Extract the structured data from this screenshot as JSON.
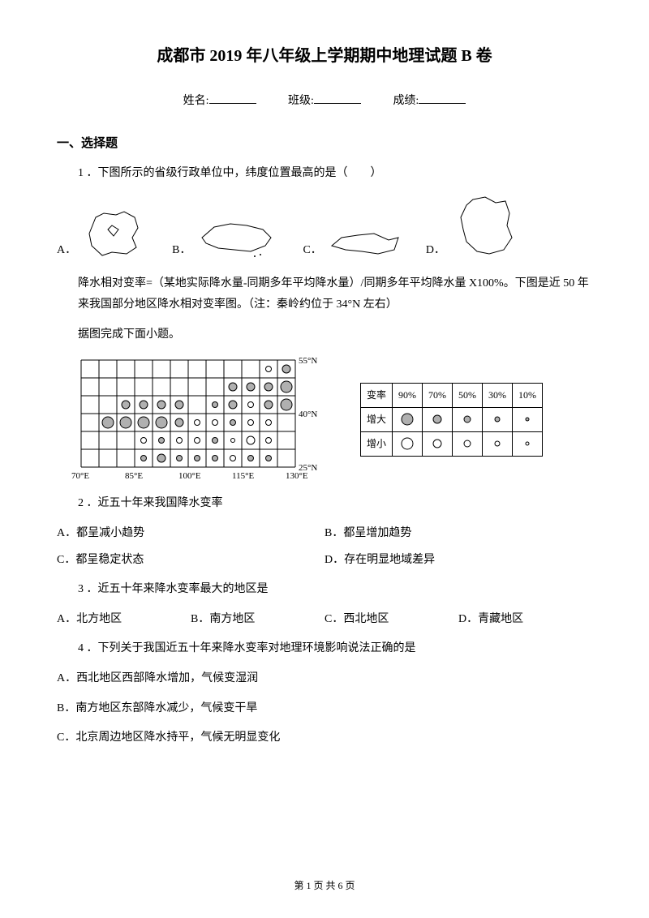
{
  "title": "成都市 2019 年八年级上学期期中地理试题 B 卷",
  "header": {
    "name_label": "姓名:",
    "class_label": "班级:",
    "score_label": "成绩:"
  },
  "section1": "一、选择题",
  "q1": {
    "text": "1 ．下图所示的省级行政单位中，纬度位置最高的是（　　）",
    "labels": {
      "a": "A．",
      "b": "B．",
      "c": "C．",
      "d": "D．"
    }
  },
  "intro2": "降水相对变率=（某地实际降水量-同期多年平均降水量）/同期多年平均降水量 X100%。下图是近 50 年来我国部分地区降水相对变率图。（注：秦岭约位于 34°N 左右）",
  "intro3": "据图完成下面小题。",
  "chart": {
    "xlabels": [
      "70°E",
      "85°E",
      "100°E",
      "115°E",
      "130°E"
    ],
    "ylabels": [
      "55°N",
      "40°N",
      "25°N"
    ],
    "grid_cols": 12,
    "grid_rows": 6,
    "cell_size": 22,
    "grid_color": "#000000",
    "bg_color": "#ffffff",
    "fill_color": "#b0b0b0",
    "points": [
      {
        "x": 10,
        "y": 0,
        "r": 3.5,
        "fill": false
      },
      {
        "x": 11,
        "y": 0,
        "r": 5,
        "fill": true
      },
      {
        "x": 8,
        "y": 1,
        "r": 5,
        "fill": true
      },
      {
        "x": 9,
        "y": 1,
        "r": 5,
        "fill": true
      },
      {
        "x": 10,
        "y": 1,
        "r": 5,
        "fill": true
      },
      {
        "x": 11,
        "y": 1,
        "r": 7,
        "fill": true
      },
      {
        "x": 2,
        "y": 2,
        "r": 5,
        "fill": true
      },
      {
        "x": 3,
        "y": 2,
        "r": 5,
        "fill": true
      },
      {
        "x": 4,
        "y": 2,
        "r": 5,
        "fill": true
      },
      {
        "x": 5,
        "y": 2,
        "r": 5,
        "fill": true
      },
      {
        "x": 7,
        "y": 2,
        "r": 3.5,
        "fill": true
      },
      {
        "x": 8,
        "y": 2,
        "r": 5,
        "fill": true
      },
      {
        "x": 9,
        "y": 2,
        "r": 3.5,
        "fill": false
      },
      {
        "x": 10,
        "y": 2,
        "r": 5,
        "fill": true
      },
      {
        "x": 11,
        "y": 2,
        "r": 7,
        "fill": true
      },
      {
        "x": 1,
        "y": 3,
        "r": 7,
        "fill": true
      },
      {
        "x": 2,
        "y": 3,
        "r": 7,
        "fill": true
      },
      {
        "x": 3,
        "y": 3,
        "r": 7,
        "fill": true
      },
      {
        "x": 4,
        "y": 3,
        "r": 7,
        "fill": true
      },
      {
        "x": 5,
        "y": 3,
        "r": 5,
        "fill": true
      },
      {
        "x": 6,
        "y": 3,
        "r": 3.5,
        "fill": false
      },
      {
        "x": 7,
        "y": 3,
        "r": 3.5,
        "fill": false
      },
      {
        "x": 8,
        "y": 3,
        "r": 3.5,
        "fill": true
      },
      {
        "x": 9,
        "y": 3,
        "r": 3.5,
        "fill": false
      },
      {
        "x": 10,
        "y": 3,
        "r": 3.5,
        "fill": false
      },
      {
        "x": 3,
        "y": 4,
        "r": 3.5,
        "fill": false
      },
      {
        "x": 4,
        "y": 4,
        "r": 3.5,
        "fill": true
      },
      {
        "x": 5,
        "y": 4,
        "r": 3.5,
        "fill": false
      },
      {
        "x": 6,
        "y": 4,
        "r": 3.5,
        "fill": false
      },
      {
        "x": 7,
        "y": 4,
        "r": 3.5,
        "fill": true
      },
      {
        "x": 8,
        "y": 4,
        "r": 2.5,
        "fill": false
      },
      {
        "x": 9,
        "y": 4,
        "r": 5,
        "fill": false
      },
      {
        "x": 10,
        "y": 4,
        "r": 3.5,
        "fill": false
      },
      {
        "x": 3,
        "y": 5,
        "r": 3.5,
        "fill": true
      },
      {
        "x": 4,
        "y": 5,
        "r": 5,
        "fill": true
      },
      {
        "x": 5,
        "y": 5,
        "r": 3.5,
        "fill": true
      },
      {
        "x": 6,
        "y": 5,
        "r": 3.5,
        "fill": true
      },
      {
        "x": 7,
        "y": 5,
        "r": 3.5,
        "fill": true
      },
      {
        "x": 8,
        "y": 5,
        "r": 3.5,
        "fill": false
      },
      {
        "x": 9,
        "y": 5,
        "r": 3.5,
        "fill": true
      },
      {
        "x": 10,
        "y": 5,
        "r": 3.5,
        "fill": true
      }
    ]
  },
  "legend": {
    "header": [
      "变率",
      "90%",
      "70%",
      "50%",
      "30%",
      "10%"
    ],
    "row_increase_label": "增大",
    "row_decrease_label": "增小",
    "radii": [
      7,
      5,
      4,
      3,
      2
    ]
  },
  "q2": {
    "text": "2 ．近五十年来我国降水变率",
    "a": "A．都呈减小趋势",
    "b": "B．都呈增加趋势",
    "c": "C．都呈稳定状态",
    "d": "D．存在明显地域差异"
  },
  "q3": {
    "text": "3 ．近五十年来降水变率最大的地区是",
    "a": "A．北方地区",
    "b": "B．南方地区",
    "c": "C．西北地区",
    "d": "D．青藏地区"
  },
  "q4": {
    "text": "4 ．下列关于我国近五十年来降水变率对地理环境影响说法正确的是",
    "a": "A．西北地区西部降水增加，气候变湿润",
    "b": "B．南方地区东部降水减少，气候变干旱",
    "c": "C．北京周边地区降水持平，气候无明显变化"
  },
  "footer": "第 1 页 共 6 页"
}
